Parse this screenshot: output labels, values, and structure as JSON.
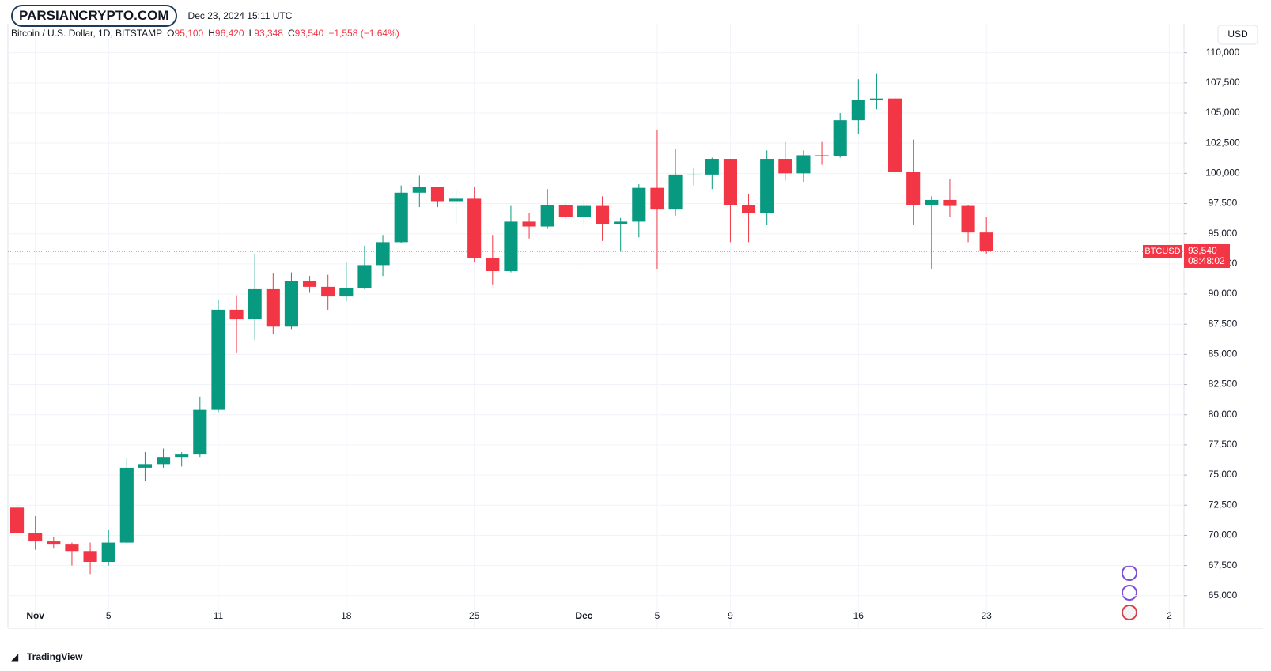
{
  "chart_data": {
    "type": "candlestick",
    "watermark": "PARSIANCRYPTO.COM",
    "timestamp": "Dec 23, 2024 15:11 UTC",
    "legend_title": "Bitcoin / U.S. Dollar, 1D, BITSTAMP",
    "ohlc_readout": [
      {
        "key": "O",
        "value": "95,100"
      },
      {
        "key": "H",
        "value": "96,420"
      },
      {
        "key": "L",
        "value": "93,348"
      },
      {
        "key": "C",
        "value": "93,540"
      }
    ],
    "change": "−1,558 (−1.64%)",
    "currency": "USD",
    "symbol": "BTCUSD",
    "last_price": {
      "value": 93540,
      "label": "93,540"
    },
    "countdown": "08:48:02",
    "branding": "TradingView",
    "up_color": "#089981",
    "down_color": "#f23645",
    "grid": true,
    "categories": [
      null,
      "Nov",
      null,
      null,
      null,
      "5",
      null,
      null,
      null,
      null,
      null,
      "11",
      null,
      null,
      null,
      null,
      null,
      null,
      "18",
      null,
      null,
      null,
      null,
      null,
      null,
      "25",
      null,
      null,
      null,
      null,
      null,
      "Dec",
      null,
      null,
      null,
      "5",
      null,
      null,
      null,
      "9",
      null,
      null,
      null,
      null,
      null,
      null,
      "16",
      null,
      null,
      null,
      null,
      null,
      null,
      "23",
      null,
      null,
      null,
      null,
      null,
      null,
      null,
      null,
      null,
      "2"
    ],
    "open": [
      72300,
      70200,
      69500,
      69300,
      68700,
      67800,
      69400,
      75600,
      75900,
      76500,
      76700,
      80400,
      88700,
      87900,
      90400,
      87300,
      91100,
      90600,
      89800,
      90500,
      92400,
      94300,
      98400,
      98900,
      97700,
      97900,
      93000,
      91900,
      96000,
      95600,
      97400,
      96400,
      97300,
      95800,
      96000,
      98800,
      97000,
      99900,
      99900,
      101200,
      97400,
      96700,
      101200,
      100000,
      101500,
      101400,
      104400,
      106100,
      106200,
      100100,
      97400,
      97800,
      97300,
      95100,
      null,
      null,
      null,
      null,
      null,
      null,
      null,
      null,
      null,
      null
    ],
    "high": [
      72700,
      71600,
      69900,
      69400,
      69400,
      70500,
      76400,
      76900,
      77200,
      76900,
      81500,
      89500,
      89900,
      93300,
      91700,
      91800,
      91500,
      91600,
      92600,
      94000,
      94900,
      99000,
      99800,
      98900,
      98600,
      98900,
      94900,
      97300,
      96700,
      98700,
      97500,
      97800,
      98100,
      96300,
      99100,
      103600,
      102000,
      100500,
      101300,
      101200,
      98300,
      101900,
      102600,
      101900,
      102600,
      105000,
      107800,
      108300,
      106500,
      102800,
      98100,
      99500,
      97400,
      96420,
      null,
      null,
      null,
      null,
      null,
      null,
      null,
      null,
      null,
      null
    ],
    "low": [
      69700,
      68800,
      68900,
      67500,
      66800,
      67500,
      69300,
      74500,
      75600,
      75700,
      76500,
      80200,
      85100,
      86200,
      86700,
      87100,
      90100,
      88700,
      89400,
      90400,
      91500,
      94200,
      97200,
      97200,
      95800,
      92600,
      90800,
      91800,
      94600,
      95400,
      96200,
      95700,
      94400,
      93500,
      94700,
      92100,
      96500,
      99000,
      98700,
      94300,
      94300,
      95700,
      99400,
      99300,
      100700,
      101300,
      103300,
      105300,
      100000,
      95700,
      92100,
      96400,
      94300,
      93348,
      null,
      null,
      null,
      null,
      null,
      null,
      null,
      null,
      null,
      null
    ],
    "close": [
      70200,
      69500,
      69300,
      68700,
      67800,
      69400,
      75600,
      75900,
      76500,
      76700,
      80400,
      88700,
      87900,
      90400,
      87300,
      91100,
      90600,
      89800,
      90500,
      92400,
      94300,
      98400,
      98900,
      97700,
      97900,
      93000,
      91900,
      96000,
      95600,
      97400,
      96400,
      97300,
      95800,
      96000,
      98800,
      97000,
      99900,
      99900,
      101200,
      97400,
      96700,
      101200,
      100000,
      101500,
      101400,
      104400,
      106100,
      106200,
      100100,
      97400,
      97800,
      97300,
      95100,
      93540,
      null,
      null,
      null,
      null,
      null,
      null,
      null,
      null,
      null,
      null
    ],
    "ylim": [
      62300,
      112400
    ],
    "yticks": [
      {
        "value": 65000,
        "label": "65,000"
      },
      {
        "value": 67500,
        "label": "67,500"
      },
      {
        "value": 70000,
        "label": "70,000"
      },
      {
        "value": 72500,
        "label": "72,500"
      },
      {
        "value": 75000,
        "label": "75,000"
      },
      {
        "value": 77500,
        "label": "77,500"
      },
      {
        "value": 80000,
        "label": "80,000"
      },
      {
        "value": 82500,
        "label": "82,500"
      },
      {
        "value": 85000,
        "label": "85,000"
      },
      {
        "value": 87500,
        "label": "87,500"
      },
      {
        "value": 90000,
        "label": "90,000"
      },
      {
        "value": 92500,
        "label": "92,500"
      },
      {
        "value": 95000,
        "label": "95,000"
      },
      {
        "value": 97500,
        "label": "97,500"
      },
      {
        "value": 100000,
        "label": "100,000"
      },
      {
        "value": 102500,
        "label": "102,500"
      },
      {
        "value": 105000,
        "label": "105,000"
      },
      {
        "value": 107500,
        "label": "107,500"
      },
      {
        "value": 110000,
        "label": "110,000"
      }
    ]
  }
}
